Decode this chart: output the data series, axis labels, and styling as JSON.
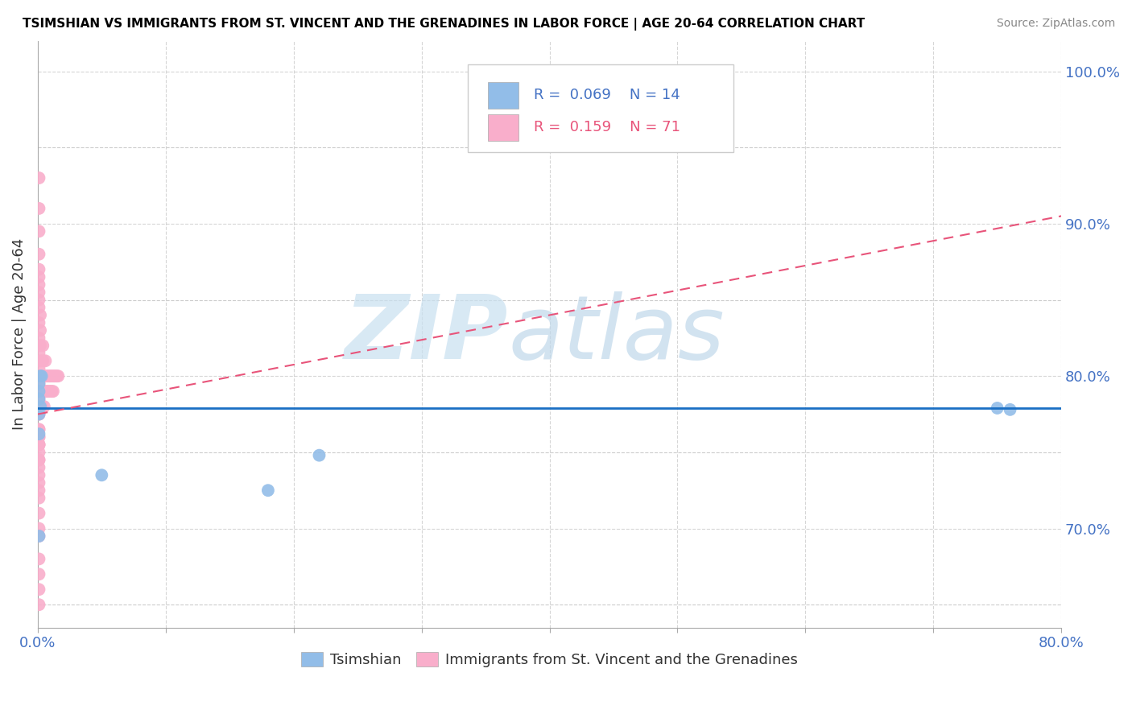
{
  "title": "TSIMSHIAN VS IMMIGRANTS FROM ST. VINCENT AND THE GRENADINES IN LABOR FORCE | AGE 20-64 CORRELATION CHART",
  "source": "Source: ZipAtlas.com",
  "ylabel": "In Labor Force | Age 20-64",
  "xlim": [
    0.0,
    0.8
  ],
  "ylim": [
    0.635,
    1.02
  ],
  "xtick_positions": [
    0.0,
    0.1,
    0.2,
    0.3,
    0.4,
    0.5,
    0.6,
    0.7,
    0.8
  ],
  "xticklabels": [
    "0.0%",
    "",
    "",
    "",
    "",
    "",
    "",
    "",
    "80.0%"
  ],
  "ytick_positions": [
    0.7,
    0.8,
    0.9,
    1.0
  ],
  "yticklabels": [
    "70.0%",
    "80.0%",
    "90.0%",
    "100.0%"
  ],
  "legend_labels": [
    "Tsimshian",
    "Immigrants from St. Vincent and the Grenadines"
  ],
  "blue_color": "#92BDE8",
  "pink_color": "#F9AECB",
  "blue_line_color": "#1A6FC4",
  "pink_line_color": "#E8547A",
  "tick_color": "#4472C4",
  "R_blue": "0.069",
  "N_blue": "14",
  "R_pink": "0.159",
  "N_pink": "71",
  "blue_dots_x": [
    0.002,
    0.001,
    0.001,
    0.003,
    0.001,
    0.002,
    0.001,
    0.001,
    0.75,
    0.76,
    0.18,
    0.22,
    0.05,
    0.001
  ],
  "blue_dots_y": [
    0.8,
    0.795,
    0.79,
    0.8,
    0.785,
    0.78,
    0.775,
    0.762,
    0.779,
    0.778,
    0.725,
    0.748,
    0.735,
    0.695
  ],
  "pink_dots_x": [
    0.001,
    0.001,
    0.001,
    0.001,
    0.001,
    0.001,
    0.001,
    0.002,
    0.002,
    0.002,
    0.002,
    0.003,
    0.003,
    0.003,
    0.004,
    0.004,
    0.005,
    0.005,
    0.005,
    0.006,
    0.006,
    0.006,
    0.007,
    0.007,
    0.008,
    0.008,
    0.009,
    0.009,
    0.01,
    0.01,
    0.011,
    0.011,
    0.012,
    0.012,
    0.013,
    0.014,
    0.015,
    0.016,
    0.001,
    0.001,
    0.001,
    0.001,
    0.001,
    0.001,
    0.001,
    0.001,
    0.001,
    0.001,
    0.001,
    0.001,
    0.001,
    0.001,
    0.001,
    0.001,
    0.001,
    0.001,
    0.001,
    0.001,
    0.001,
    0.001,
    0.001,
    0.001,
    0.001,
    0.001,
    0.001,
    0.001,
    0.001,
    0.001,
    0.001,
    0.001,
    0.001
  ],
  "pink_dots_y": [
    0.93,
    0.91,
    0.895,
    0.88,
    0.87,
    0.86,
    0.85,
    0.84,
    0.83,
    0.82,
    0.81,
    0.8,
    0.79,
    0.78,
    0.82,
    0.81,
    0.8,
    0.79,
    0.78,
    0.81,
    0.8,
    0.79,
    0.8,
    0.79,
    0.8,
    0.79,
    0.8,
    0.79,
    0.8,
    0.79,
    0.8,
    0.79,
    0.8,
    0.79,
    0.8,
    0.8,
    0.8,
    0.8,
    0.865,
    0.855,
    0.845,
    0.835,
    0.825,
    0.815,
    0.805,
    0.795,
    0.785,
    0.775,
    0.765,
    0.755,
    0.745,
    0.775,
    0.765,
    0.755,
    0.76,
    0.75,
    0.74,
    0.73,
    0.76,
    0.755,
    0.745,
    0.735,
    0.725,
    0.72,
    0.71,
    0.7,
    0.695,
    0.68,
    0.67,
    0.66,
    0.65
  ],
  "blue_line_x": [
    0.0,
    0.8
  ],
  "blue_line_y": [
    0.779,
    0.779
  ],
  "pink_line_x": [
    0.0,
    0.8
  ],
  "pink_line_y": [
    0.775,
    0.905
  ],
  "watermark_zip_color": "#C8E0F0",
  "watermark_atlas_color": "#C0D8EA",
  "grid_color": "#CCCCCC",
  "spine_color": "#AAAAAA"
}
